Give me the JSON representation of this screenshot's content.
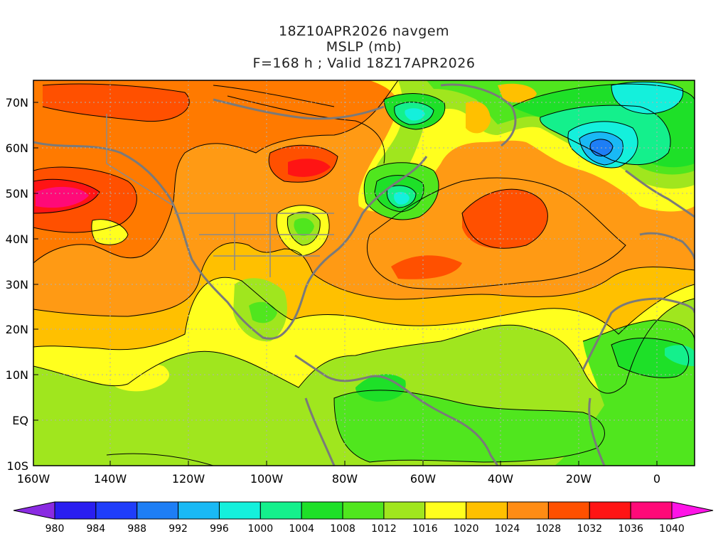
{
  "title": {
    "line1": "18Z10APR2026 navgem",
    "line2": "MSLP (mb)",
    "line3": "F=168 h ; Valid 18Z17APR2026"
  },
  "map": {
    "lon_ticks": [
      "160W",
      "140W",
      "120W",
      "100W",
      "80W",
      "60W",
      "40W",
      "20W",
      "0"
    ],
    "lat_ticks": [
      "70N",
      "60N",
      "50N",
      "40N",
      "30N",
      "20N",
      "10N",
      "EQ",
      "10S"
    ]
  },
  "colorbar": {
    "labels": [
      "980",
      "984",
      "988",
      "992",
      "996",
      "1000",
      "1004",
      "1008",
      "1012",
      "1016",
      "1020",
      "1024",
      "1028",
      "1032",
      "1036",
      "1040"
    ],
    "colors": [
      "#8a2be2",
      "#2a1ef0",
      "#1f3dfa",
      "#1e7ef5",
      "#19b9f5",
      "#14f0dc",
      "#14f08c",
      "#1ee028",
      "#50e61e",
      "#a0e61e",
      "#ffff1e",
      "#ffc000",
      "#ff8c14",
      "#ff5000",
      "#ff1414",
      "#ff0a78",
      "#ff14b4",
      "#ff14e6"
    ]
  },
  "features": {
    "high_centers": [
      {
        "lon": -152,
        "lat": 49,
        "value": 1034
      },
      {
        "lon": -88,
        "lat": 55,
        "value": 1030
      },
      {
        "lon": -40,
        "lat": 46,
        "value": 1028
      },
      {
        "lon": -55,
        "lat": 34,
        "value": 1026
      }
    ],
    "low_centers": [
      {
        "lon": -13,
        "lat": 60,
        "value": 992
      },
      {
        "lon": -65,
        "lat": 48,
        "value": 1002
      },
      {
        "lon": -61,
        "lat": 67,
        "value": 1000
      },
      {
        "lon": -92,
        "lat": 44,
        "value": 1006
      }
    ]
  }
}
